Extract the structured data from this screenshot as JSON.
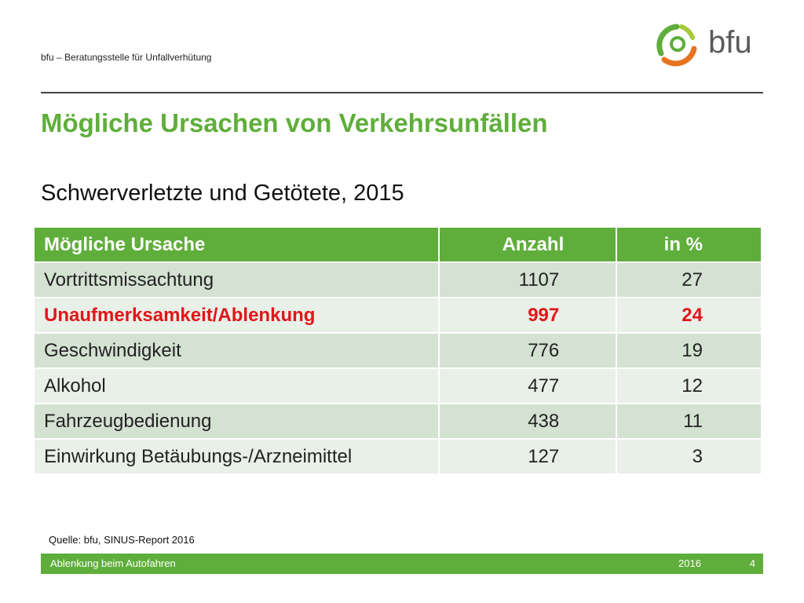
{
  "header": {
    "organization": "bfu – Beratungsstelle für Unfallverhütung",
    "logo_text": "bfu"
  },
  "title": "Mögliche Ursachen von Verkehrsunfällen",
  "subtitle": "Schwerverletzte und Getötete, 2015",
  "table": {
    "headers": [
      "Mögliche Ursache",
      "Anzahl",
      "in %"
    ],
    "rows": [
      {
        "cause": "Vortrittsmissachtung",
        "count": "1107",
        "percent": "27"
      },
      {
        "cause": "Unaufmerksamkeit/Ablenkung",
        "count": "997",
        "percent": "24"
      },
      {
        "cause": "Geschwindigkeit",
        "count": "776",
        "percent": "19"
      },
      {
        "cause": "Alkohol",
        "count": "477",
        "percent": "12"
      },
      {
        "cause": "Fahrzeugbedienung",
        "count": "438",
        "percent": "11"
      },
      {
        "cause": "Einwirkung Betäubungs-/Arzneimittel",
        "count": "127",
        "percent": "3"
      }
    ]
  },
  "source": "Quelle: bfu, SINUS-Report 2016",
  "footer": {
    "topic": "Ablenkung beim Autofahren",
    "year": "2016",
    "page": "4"
  },
  "colors": {
    "accent_green": "#5fae3b",
    "highlight_red": "#e0161a",
    "logo_orange": "#e8731f"
  }
}
